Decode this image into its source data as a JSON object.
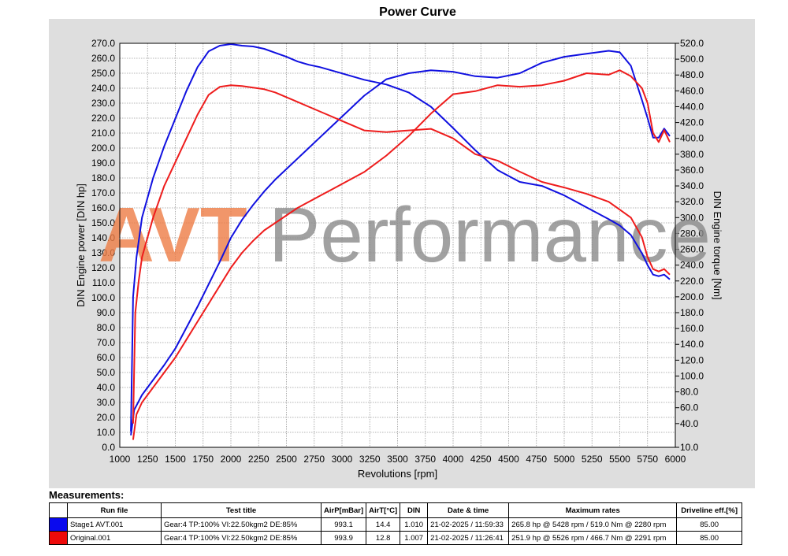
{
  "chart_data": {
    "type": "line",
    "title": "Power Curve",
    "xlabel": "Revolutions [rpm]",
    "ylabel_left": "DIN Engine power [DIN hp]",
    "ylabel_right": "DIN Engine torque [Nm]",
    "xlim": [
      1000,
      6000
    ],
    "ylim_left": [
      0,
      270
    ],
    "ylim_right": [
      10,
      520
    ],
    "x_ticks": [
      "1000",
      "1250",
      "1500",
      "1750",
      "2000",
      "2250",
      "2500",
      "2750",
      "3000",
      "3250",
      "3500",
      "3750",
      "4000",
      "4250",
      "4500",
      "4750",
      "5000",
      "5250",
      "5500",
      "5750",
      "6000"
    ],
    "y_left_ticks": [
      "0.0",
      "10.0",
      "20.0",
      "30.0",
      "40.0",
      "50.0",
      "60.0",
      "70.0",
      "80.0",
      "90.0",
      "100.0",
      "110.0",
      "120.0",
      "130.0",
      "140.0",
      "150.0",
      "160.0",
      "170.0",
      "180.0",
      "190.0",
      "200.0",
      "210.0",
      "220.0",
      "230.0",
      "240.0",
      "250.0",
      "260.0",
      "270.0"
    ],
    "y_right_ticks": [
      "10.0",
      "40.0",
      "60.0",
      "80.0",
      "100.0",
      "120.0",
      "140.0",
      "160.0",
      "180.0",
      "200.0",
      "220.0",
      "240.0",
      "260.0",
      "280.0",
      "300.0",
      "320.0",
      "340.0",
      "360.0",
      "380.0",
      "400.0",
      "420.0",
      "440.0",
      "460.0",
      "480.0",
      "500.0",
      "520.0"
    ],
    "grid": true,
    "watermark": {
      "part1": "AVT",
      "part2": " Performance"
    },
    "series": [
      {
        "name": "Stage1 AVT.001",
        "quantity": "power",
        "axis": "left",
        "color": "#1010e0",
        "x": [
          1100,
          1130,
          1200,
          1300,
          1400,
          1500,
          1600,
          1700,
          1800,
          1900,
          2000,
          2100,
          2200,
          2300,
          2400,
          2500,
          2600,
          2700,
          2800,
          2900,
          3000,
          3200,
          3400,
          3600,
          3800,
          4000,
          4200,
          4400,
          4600,
          4800,
          5000,
          5200,
          5400,
          5500,
          5600,
          5700,
          5750,
          5800,
          5850,
          5900,
          5950
        ],
        "y": [
          8,
          25,
          35,
          45,
          55,
          66,
          80,
          94,
          109,
          124,
          140,
          152,
          162,
          171,
          179,
          186,
          193,
          200,
          207,
          214,
          221,
          235,
          246,
          250,
          252,
          251,
          248,
          247,
          250,
          257,
          261,
          263,
          265,
          264,
          255,
          232,
          220,
          207,
          207,
          213,
          208
        ]
      },
      {
        "name": "Stage1 AVT.001",
        "quantity": "torque",
        "axis": "right",
        "color": "#1010e0",
        "x": [
          1100,
          1120,
          1150,
          1200,
          1300,
          1400,
          1500,
          1600,
          1700,
          1800,
          1900,
          2000,
          2100,
          2200,
          2300,
          2400,
          2500,
          2600,
          2700,
          2800,
          2900,
          3000,
          3200,
          3400,
          3600,
          3800,
          4000,
          4200,
          4400,
          4600,
          4800,
          5000,
          5200,
          5400,
          5500,
          5600,
          5700,
          5750,
          5800,
          5850,
          5900,
          5950
        ],
        "y": [
          30,
          200,
          250,
          300,
          350,
          390,
          425,
          460,
          490,
          510,
          517,
          519,
          517,
          516,
          513,
          508,
          503,
          497,
          493,
          490,
          486,
          482,
          474,
          468,
          458,
          440,
          413,
          385,
          360,
          345,
          340,
          328,
          313,
          298,
          290,
          278,
          255,
          240,
          228,
          226,
          228,
          222
        ]
      },
      {
        "name": "Original.001",
        "quantity": "power",
        "axis": "left",
        "color": "#ee1c1c",
        "x": [
          1120,
          1150,
          1200,
          1300,
          1400,
          1500,
          1600,
          1700,
          1800,
          1900,
          2000,
          2100,
          2200,
          2300,
          2400,
          2500,
          2600,
          2700,
          2800,
          2900,
          3000,
          3200,
          3400,
          3600,
          3800,
          4000,
          4200,
          4400,
          4600,
          4800,
          5000,
          5200,
          5400,
          5500,
          5600,
          5700,
          5750,
          5800,
          5850,
          5900,
          5950
        ],
        "y": [
          5,
          22,
          30,
          40,
          50,
          60,
          72,
          84,
          96,
          108,
          120,
          130,
          138,
          145,
          150,
          155,
          160,
          164,
          168,
          172,
          176,
          184,
          195,
          208,
          223,
          236,
          238,
          242,
          241,
          242,
          245,
          250,
          249,
          252,
          248,
          240,
          230,
          210,
          204,
          212,
          204
        ]
      },
      {
        "name": "Original.001",
        "quantity": "torque",
        "axis": "right",
        "color": "#ee1c1c",
        "x": [
          1120,
          1140,
          1170,
          1200,
          1300,
          1400,
          1500,
          1600,
          1700,
          1800,
          1900,
          2000,
          2100,
          2200,
          2300,
          2400,
          2500,
          2600,
          2700,
          2800,
          2900,
          3000,
          3200,
          3400,
          3600,
          3800,
          4000,
          4200,
          4400,
          4600,
          4800,
          5000,
          5200,
          5400,
          5500,
          5600,
          5700,
          5750,
          5800,
          5850,
          5900,
          5950
        ],
        "y": [
          40,
          180,
          220,
          250,
          300,
          340,
          370,
          400,
          430,
          455,
          465,
          467,
          466,
          464,
          462,
          458,
          452,
          446,
          440,
          434,
          428,
          422,
          410,
          408,
          410,
          412,
          400,
          380,
          372,
          358,
          345,
          338,
          330,
          320,
          310,
          300,
          275,
          250,
          235,
          232,
          235,
          228
        ]
      }
    ]
  },
  "measurements": {
    "title": "Measurements:",
    "headers": [
      "Run file",
      "Test title",
      "AirP[mBar]",
      "AirT[°C]",
      "DIN",
      "Date & time",
      "Maximum rates",
      "Driveline eff.[%]"
    ],
    "rows": [
      {
        "color": "#0a0aee",
        "run_file": "Stage1 AVT.001",
        "test_title": "Gear:4 TP:100% VI:22.50kgm2 DE:85%",
        "airp": "993.1",
        "airt": "14.4",
        "din": "1.010",
        "datetime": "21-02-2025 / 11:59:33",
        "max_rates": "265.8 hp @ 5428 rpm / 519.0 Nm @ 2280 rpm",
        "eff": "85.00"
      },
      {
        "color": "#ee0a0a",
        "run_file": "Original.001",
        "test_title": "Gear:4 TP:100% VI:22.50kgm2 DE:85%",
        "airp": "993.9",
        "airt": "12.8",
        "din": "1.007",
        "datetime": "21-02-2025 / 11:26:41",
        "max_rates": "251.9 hp @ 5526 rpm / 466.7 Nm @ 2291 rpm",
        "eff": "85.00"
      }
    ]
  }
}
